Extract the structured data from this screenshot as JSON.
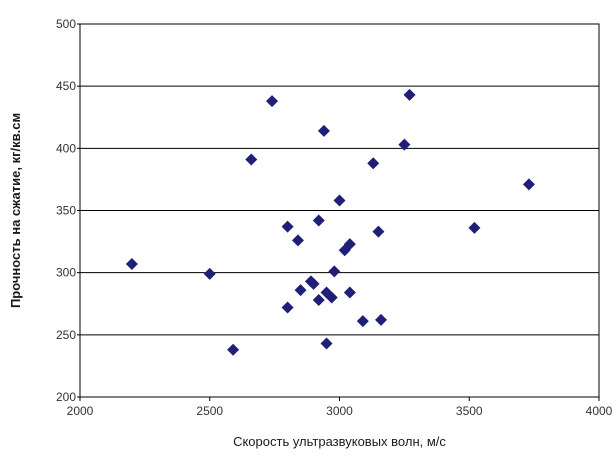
{
  "chart_data": {
    "type": "scatter",
    "title": "",
    "xlabel": "Скорость ультразвуковых волн, м/с",
    "ylabel": "Прочность на сжатие, кг/кв.см",
    "xlim": [
      2000,
      4000
    ],
    "ylim": [
      200,
      500
    ],
    "xticks": [
      2000,
      2500,
      3000,
      3500,
      4000
    ],
    "yticks": [
      200,
      250,
      300,
      350,
      400,
      450,
      500
    ],
    "xtick_labels": [
      "2000",
      "2500",
      "3000",
      "3500",
      "4000"
    ],
    "ytick_labels": [
      "200",
      "250",
      "300",
      "350",
      "400",
      "450",
      "500"
    ],
    "grid": "horizontal",
    "legend": "none",
    "marker": "diamond",
    "marker_color": "#1f1f78",
    "points": [
      {
        "x": 2200,
        "y": 307
      },
      {
        "x": 2500,
        "y": 299
      },
      {
        "x": 2590,
        "y": 238
      },
      {
        "x": 2660,
        "y": 391
      },
      {
        "x": 2740,
        "y": 438
      },
      {
        "x": 2800,
        "y": 337
      },
      {
        "x": 2800,
        "y": 272
      },
      {
        "x": 2840,
        "y": 326
      },
      {
        "x": 2850,
        "y": 286
      },
      {
        "x": 2890,
        "y": 293
      },
      {
        "x": 2900,
        "y": 291
      },
      {
        "x": 2920,
        "y": 342
      },
      {
        "x": 2920,
        "y": 278
      },
      {
        "x": 2940,
        "y": 414
      },
      {
        "x": 2950,
        "y": 284
      },
      {
        "x": 2950,
        "y": 243
      },
      {
        "x": 2970,
        "y": 280
      },
      {
        "x": 2980,
        "y": 301
      },
      {
        "x": 3000,
        "y": 358
      },
      {
        "x": 3020,
        "y": 318
      },
      {
        "x": 3040,
        "y": 323
      },
      {
        "x": 3040,
        "y": 284
      },
      {
        "x": 3090,
        "y": 261
      },
      {
        "x": 3130,
        "y": 388
      },
      {
        "x": 3150,
        "y": 333
      },
      {
        "x": 3160,
        "y": 262
      },
      {
        "x": 3250,
        "y": 403
      },
      {
        "x": 3270,
        "y": 443
      },
      {
        "x": 3520,
        "y": 336
      },
      {
        "x": 3730,
        "y": 371
      }
    ]
  }
}
